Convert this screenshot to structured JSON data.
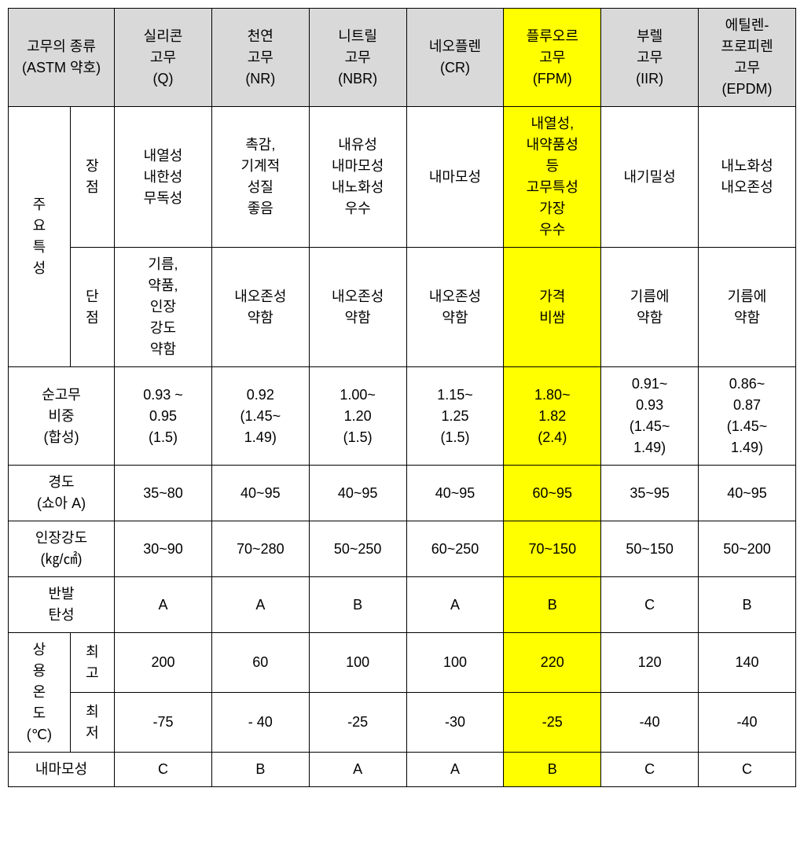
{
  "colors": {
    "header_bg": "#d9d9d9",
    "highlight_bg": "#ffff00",
    "border": "#000000",
    "text": "#000000"
  },
  "header": {
    "rowlabel": "고무의 종류\n(ASTM 약호)",
    "cols": [
      "실리콘\n고무\n(Q)",
      "천연\n고무\n(NR)",
      "니트릴\n고무\n(NBR)",
      "네오플렌\n(CR)",
      "플루오르\n고무\n(FPM)",
      "부렐\n고무\n(IIR)",
      "에틸렌-\n프로피렌\n고무\n(EPDM)"
    ]
  },
  "rows": {
    "main_char": {
      "label": "주\n요\n특\n성",
      "adv": {
        "label": "장\n점",
        "vals": [
          "내열성\n내한성\n무독성",
          "촉감,\n기계적\n성질\n좋음",
          "내유성\n내마모성\n내노화성\n우수",
          "내마모성",
          "내열성,\n내약품성\n등\n고무특성\n가장\n우수",
          "내기밀성",
          "내노화성\n내오존성"
        ]
      },
      "dis": {
        "label": "단\n점",
        "vals": [
          "기름,\n약품,\n인장\n강도\n약함",
          "내오존성\n약함",
          "내오존성\n약함",
          "내오존성\n약함",
          "가격\n비쌈",
          "기름에\n약함",
          "기름에\n약함"
        ]
      }
    },
    "density": {
      "label": "순고무\n비중\n(합성)",
      "vals": [
        "0.93 ~\n0.95\n(1.5)",
        "0.92\n(1.45~\n1.49)",
        "1.00~\n1.20\n(1.5)",
        "1.15~\n1.25\n(1.5)",
        "1.80~\n1.82\n(2.4)",
        "0.91~\n0.93\n(1.45~\n1.49)",
        "0.86~\n0.87\n(1.45~\n1.49)"
      ]
    },
    "hardness": {
      "label": "경도\n(쇼아 A)",
      "vals": [
        "35~80",
        "40~95",
        "40~95",
        "40~95",
        "60~95",
        "35~95",
        "40~95"
      ]
    },
    "tensile": {
      "label": "인장강도\n(㎏/㎠)",
      "vals": [
        "30~90",
        "70~280",
        "50~250",
        "60~250",
        "70~150",
        "50~150",
        "50~200"
      ]
    },
    "rebound": {
      "label": "반발\n탄성",
      "vals": [
        "A",
        "A",
        "B",
        "A",
        "B",
        "C",
        "B"
      ]
    },
    "temp": {
      "label": "상\n용\n온\n도\n(℃)",
      "high": {
        "label": "최\n고",
        "vals": [
          "200",
          "60",
          "100",
          "100",
          "220",
          "120",
          "140"
        ]
      },
      "low": {
        "label": "최\n저",
        "vals": [
          "-75",
          "- 40",
          "-25",
          "-30",
          "-25",
          "-40",
          "-40"
        ]
      }
    },
    "abrasion": {
      "label": "내마모성",
      "vals": [
        "C",
        "B",
        "A",
        "A",
        "B",
        "C",
        "C"
      ]
    }
  },
  "highlight_col_index": 4
}
